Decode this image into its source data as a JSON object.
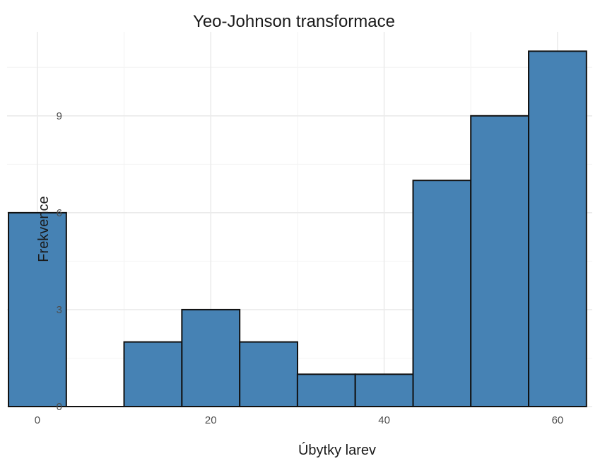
{
  "chart_data": {
    "type": "bar",
    "variant": "histogram",
    "title": "Yeo-Johnson transformace",
    "xlabel": "Úbytky larev",
    "ylabel": "Frekvence",
    "bin_width": 6.67,
    "bin_centers": [
      0,
      6.67,
      13.33,
      20,
      26.67,
      33.33,
      40,
      46.67,
      53.33,
      60
    ],
    "counts": [
      6,
      0,
      2,
      3,
      2,
      1,
      1,
      7,
      9,
      11
    ],
    "xlim": [
      -3.5,
      64
    ],
    "ylim": [
      0,
      11.6
    ],
    "x_ticks": [
      0,
      20,
      40,
      60
    ],
    "x_tick_labels": [
      "0",
      "20",
      "40",
      "60"
    ],
    "y_ticks": [
      0,
      3,
      6,
      9
    ],
    "y_tick_labels": [
      "0",
      "3",
      "6",
      "9"
    ],
    "bar_fill": "#4682b4",
    "bar_stroke": "#111111",
    "grid": true,
    "theme": "minimal"
  }
}
